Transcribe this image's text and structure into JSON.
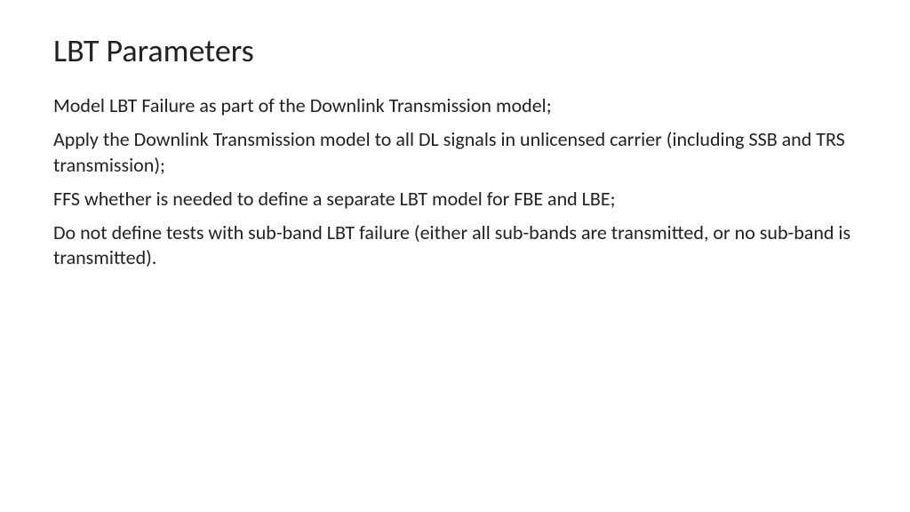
{
  "slide": {
    "title": "LBT Parameters",
    "paragraphs": [
      "Model LBT Failure as part of the Downlink Transmission model;",
      "Apply the Downlink Transmission model to all DL signals in unlicensed carrier (including SSB and TRS transmission);",
      "FFS whether is needed to define a separate LBT model for FBE and LBE;",
      "Do not define tests with sub-band LBT failure (either all sub-bands are transmitted, or no sub-band is transmitted)."
    ]
  },
  "style": {
    "background_color": "#ffffff",
    "text_color": "#222222",
    "title_fontsize": 36,
    "body_fontsize": 22,
    "font_family": "Calibri"
  }
}
